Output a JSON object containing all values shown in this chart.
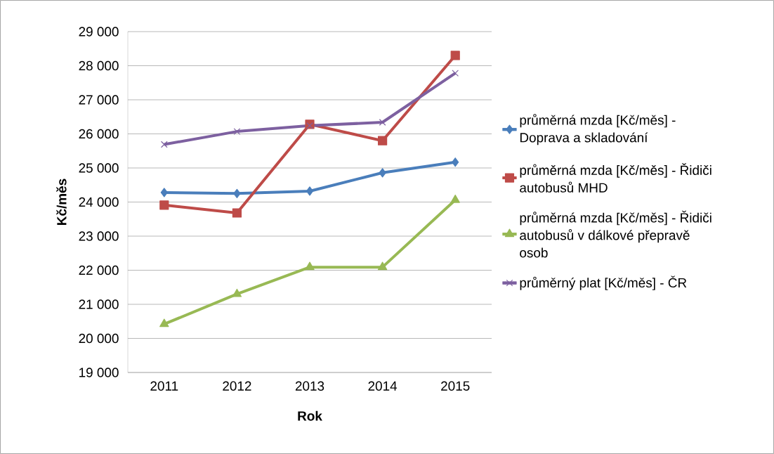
{
  "chart_data": {
    "type": "line",
    "xlabel": "Rok",
    "ylabel": "Kč/měs",
    "categories": [
      "2011",
      "2012",
      "2013",
      "2014",
      "2015"
    ],
    "series": [
      {
        "name": "průměrná mzda [Kč/měs] - Doprava a skladování",
        "color": "#4a7ebb",
        "marker": "diamond",
        "values": [
          24280,
          24250,
          24320,
          24860,
          25170
        ]
      },
      {
        "name": "průměrná mzda [Kč/měs] - Řidiči autobusů MHD",
        "color": "#be4b48",
        "marker": "square",
        "values": [
          23910,
          23680,
          26280,
          25800,
          28300
        ]
      },
      {
        "name": "průměrná mzda [Kč/měs] - Řidiči autobusů v dálkové přepravě osob",
        "color": "#98b954",
        "marker": "triangle",
        "values": [
          20420,
          21300,
          22090,
          22090,
          24060
        ]
      },
      {
        "name": "průměrný plat [Kč/měs] - ČR",
        "color": "#7d60a0",
        "marker": "cross",
        "values": [
          25690,
          26070,
          26240,
          26340,
          27780
        ]
      }
    ],
    "ylim": [
      19000,
      29000
    ],
    "yticks": [
      {
        "value": 19000,
        "label": "19 000"
      },
      {
        "value": 20000,
        "label": "20 000"
      },
      {
        "value": 21000,
        "label": "21 000"
      },
      {
        "value": 22000,
        "label": "22 000"
      },
      {
        "value": 23000,
        "label": "23 000"
      },
      {
        "value": 24000,
        "label": "24 000"
      },
      {
        "value": 25000,
        "label": "25 000"
      },
      {
        "value": 26000,
        "label": "26 000"
      },
      {
        "value": 27000,
        "label": "27 000"
      },
      {
        "value": 28000,
        "label": "28 000"
      },
      {
        "value": 29000,
        "label": "29 000"
      }
    ],
    "grid": "y",
    "legend": "right",
    "line_style": "solid"
  }
}
